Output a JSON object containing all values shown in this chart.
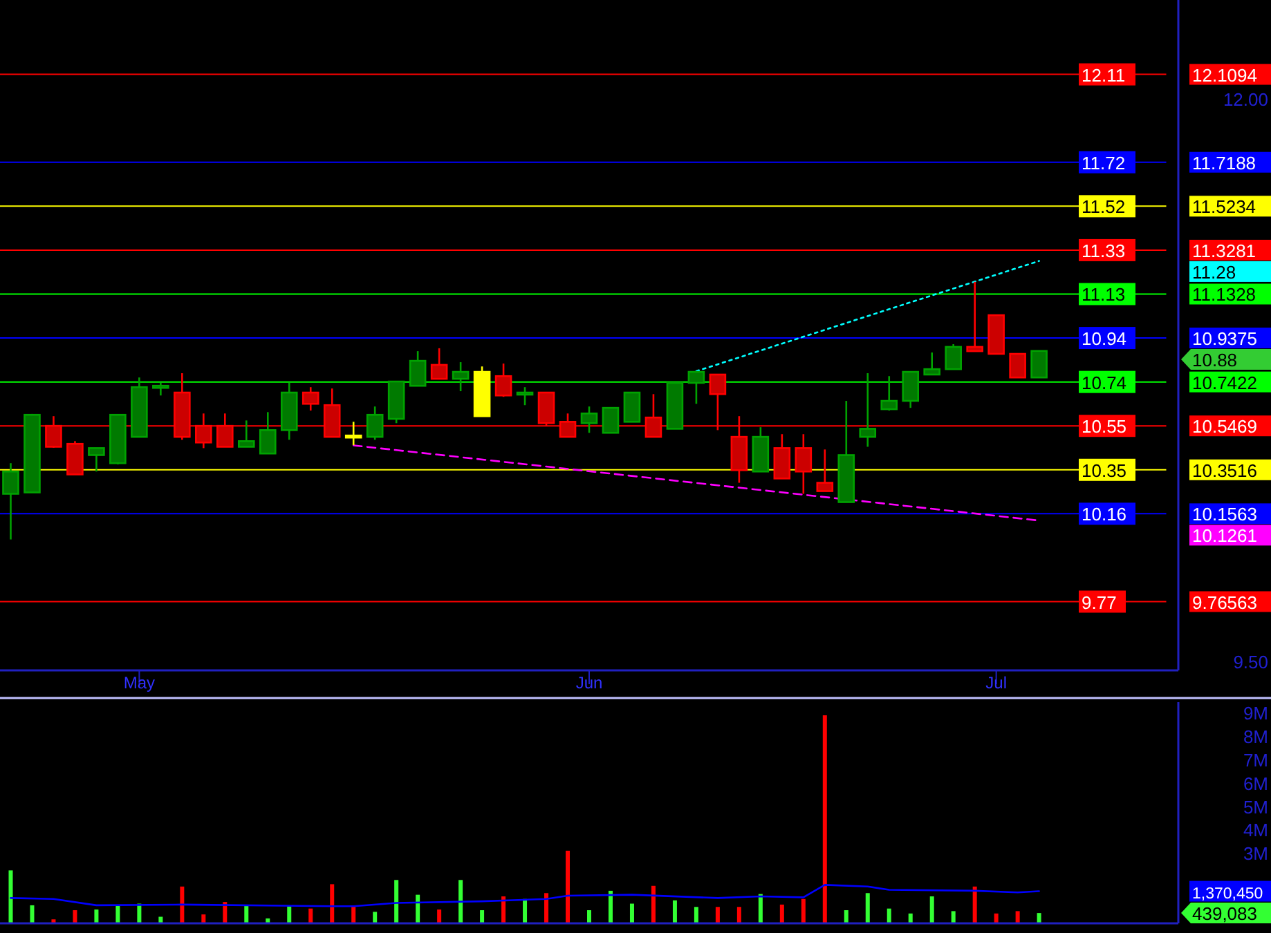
{
  "chart_data": [
    {
      "type": "candlestick",
      "categories": [
        null,
        null,
        null,
        null,
        null,
        null,
        "May",
        null,
        null,
        null,
        null,
        null,
        null,
        null,
        null,
        null,
        null,
        null,
        null,
        null,
        null,
        null,
        null,
        null,
        null,
        null,
        null,
        "Jun",
        null,
        null,
        null,
        null,
        null,
        null,
        null,
        null,
        null,
        null,
        null,
        null,
        null,
        null,
        null,
        null,
        null,
        null,
        "Jul",
        null,
        null,
        null,
        null,
        null,
        null,
        null,
        null
      ],
      "ohlc": [
        [
          10.245,
          10.381,
          10.042,
          10.344
        ],
        [
          10.251,
          10.6,
          10.25,
          10.596
        ],
        [
          10.547,
          10.59,
          10.45,
          10.454
        ],
        [
          10.467,
          10.479,
          10.33,
          10.331
        ],
        [
          10.417,
          10.448,
          10.344,
          10.448
        ],
        [
          10.381,
          10.596,
          10.376,
          10.596
        ],
        [
          10.498,
          10.762,
          10.498,
          10.719
        ],
        [
          10.72,
          10.738,
          10.682,
          10.725
        ],
        [
          10.695,
          10.781,
          10.485,
          10.498
        ],
        [
          10.547,
          10.602,
          10.448,
          10.473
        ],
        [
          10.547,
          10.602,
          10.454,
          10.454
        ],
        [
          10.454,
          10.571,
          10.454,
          10.479
        ],
        [
          10.424,
          10.608,
          10.424,
          10.528
        ],
        [
          10.528,
          10.738,
          10.485,
          10.695
        ],
        [
          10.695,
          10.719,
          10.615,
          10.645
        ],
        [
          10.639,
          10.713,
          10.498,
          10.498
        ],
        [
          10.504,
          10.565,
          10.461,
          10.504
        ],
        [
          10.498,
          10.633,
          10.485,
          10.596
        ],
        [
          10.578,
          10.744,
          10.559,
          10.744
        ],
        [
          10.725,
          10.879,
          10.725,
          10.836
        ],
        [
          10.818,
          10.892,
          10.756,
          10.756
        ],
        [
          10.756,
          10.83,
          10.701,
          10.787
        ],
        [
          10.59,
          10.811,
          10.59,
          10.787
        ],
        [
          10.768,
          10.824,
          10.676,
          10.682
        ],
        [
          10.69,
          10.719,
          10.639,
          10.695
        ],
        [
          10.695,
          10.695,
          10.547,
          10.559
        ],
        [
          10.565,
          10.602,
          10.498,
          10.498
        ],
        [
          10.559,
          10.633,
          10.516,
          10.602
        ],
        [
          10.516,
          10.627,
          10.516,
          10.627
        ],
        [
          10.565,
          10.695,
          10.565,
          10.695
        ],
        [
          10.584,
          10.688,
          10.498,
          10.498
        ],
        [
          10.534,
          10.738,
          10.534,
          10.738
        ],
        [
          10.738,
          10.787,
          10.645,
          10.787
        ],
        [
          10.775,
          10.775,
          10.528,
          10.688
        ],
        [
          10.498,
          10.59,
          10.294,
          10.35
        ],
        [
          10.344,
          10.541,
          10.344,
          10.498
        ],
        [
          10.448,
          10.51,
          10.313,
          10.313
        ],
        [
          10.448,
          10.51,
          10.245,
          10.344
        ],
        [
          10.294,
          10.442,
          10.257,
          10.257
        ],
        [
          10.208,
          10.658,
          10.208,
          10.417
        ],
        [
          10.498,
          10.781,
          10.454,
          10.534
        ],
        [
          10.621,
          10.768,
          10.615,
          10.658
        ],
        [
          10.658,
          10.787,
          10.627,
          10.787
        ],
        [
          10.775,
          10.873,
          10.775,
          10.799
        ],
        [
          10.799,
          10.91,
          10.799,
          10.898
        ],
        [
          10.898,
          11.187,
          10.879,
          10.879
        ],
        [
          11.039,
          11.039,
          10.867,
          10.867
        ],
        [
          10.867,
          10.867,
          10.762,
          10.762
        ],
        [
          10.762,
          10.88,
          10.762,
          10.88
        ],
        null,
        null,
        null,
        null,
        null,
        null
      ],
      "colors": [
        "#007a00",
        "#007a00",
        "#cc0000",
        "#cc0000",
        "#007a00",
        "#007a00",
        "#007a00",
        "#007a00",
        "#cc0000",
        "#cc0000",
        "#cc0000",
        "#007a00",
        "#007a00",
        "#007a00",
        "#cc0000",
        "#cc0000",
        "#ffff00",
        "#007a00",
        "#007a00",
        "#007a00",
        "#cc0000",
        "#007a00",
        "#ffff00",
        "#cc0000",
        "#007a00",
        "#cc0000",
        "#cc0000",
        "#007a00",
        "#007a00",
        "#007a00",
        "#cc0000",
        "#007a00",
        "#007a00",
        "#cc0000",
        "#cc0000",
        "#007a00",
        "#cc0000",
        "#cc0000",
        "#cc0000",
        "#007a00",
        "#007a00",
        "#007a00",
        "#007a00",
        "#007a00",
        "#007a00",
        "#cc0000",
        "#cc0000",
        "#cc0000",
        "#007a00",
        null,
        null,
        null,
        null,
        null,
        null
      ],
      "series": [
        {
          "type": "line",
          "values": [
            null,
            null,
            null,
            null,
            null,
            null,
            null,
            null,
            null,
            null,
            null,
            null,
            null,
            null,
            null,
            null,
            10.46,
            null,
            null,
            null,
            null,
            null,
            null,
            null,
            null,
            null,
            null,
            null,
            null,
            null,
            null,
            null,
            null,
            null,
            null,
            null,
            null,
            null,
            null,
            null,
            null,
            null,
            null,
            null,
            null,
            null,
            null,
            null,
            10.1261,
            null,
            null,
            null,
            null,
            null,
            null
          ],
          "color": "#ff00ff",
          "line_style": "dashed"
        },
        {
          "type": "line",
          "values": [
            null,
            null,
            null,
            null,
            null,
            null,
            null,
            null,
            null,
            null,
            null,
            null,
            null,
            null,
            null,
            null,
            null,
            null,
            null,
            null,
            null,
            null,
            null,
            null,
            null,
            null,
            null,
            null,
            null,
            null,
            null,
            null,
            10.79,
            null,
            null,
            null,
            null,
            null,
            null,
            null,
            null,
            null,
            null,
            null,
            null,
            null,
            null,
            null,
            11.28,
            null,
            null,
            null,
            null,
            null,
            null
          ],
          "color": "#00ffff",
          "line_style": "dotted"
        }
      ],
      "ref_lines": [
        {
          "axis": "y",
          "value": 12.1094,
          "label": "12.11",
          "color": "#ff0000"
        },
        {
          "axis": "y",
          "value": 11.7188,
          "label": "11.72",
          "color": "#0000ff"
        },
        {
          "axis": "y",
          "value": 11.5234,
          "label": "11.52",
          "color": "#ffff00"
        },
        {
          "axis": "y",
          "value": 11.3281,
          "label": "11.33",
          "color": "#ff0000"
        },
        {
          "axis": "y",
          "value": 11.1328,
          "label": "11.13",
          "color": "#00ff00"
        },
        {
          "axis": "y",
          "value": 10.9375,
          "label": "10.94",
          "color": "#0000ff"
        },
        {
          "axis": "y",
          "value": 10.7422,
          "label": "10.74",
          "color": "#00ff00"
        },
        {
          "axis": "y",
          "value": 10.5469,
          "label": "10.55",
          "color": "#ff0000"
        },
        {
          "axis": "y",
          "value": 10.3516,
          "label": "10.35",
          "color": "#ffff00"
        },
        {
          "axis": "y",
          "value": 10.1563,
          "label": "10.16",
          "color": "#0000ff"
        },
        {
          "axis": "y",
          "value": 9.76563,
          "label": "9.77",
          "color": "#ff0000"
        }
      ],
      "annotations": [
        "12.1094",
        "11.7188",
        "11.5234",
        "11.3281",
        "11.28",
        "11.1328",
        "10.9375",
        "10.88",
        "10.7422",
        "10.5469",
        "10.3516",
        "10.1563",
        "10.1261",
        "9.76563"
      ],
      "ylim": [
        9.46,
        12.44
      ],
      "yticks": [
        {
          "value": 9.5,
          "label": "9.50"
        },
        {
          "value": 12,
          "label": "12.00"
        }
      ],
      "grid": false
    },
    {
      "type": "bar",
      "categories": [
        null,
        null,
        null,
        null,
        null,
        null,
        null,
        null,
        null,
        null,
        null,
        null,
        null,
        null,
        null,
        null,
        null,
        null,
        null,
        null,
        null,
        null,
        null,
        null,
        null,
        null,
        null,
        null,
        null,
        null,
        null,
        null,
        null,
        null,
        null,
        null,
        null,
        null,
        null,
        null,
        null,
        null,
        null,
        null,
        null,
        null,
        null,
        null,
        null,
        null,
        null,
        null,
        null,
        null,
        null
      ],
      "series": [
        {
          "type": "bar",
          "values": [
            2260000,
            770000,
            170000,
            560000,
            590000,
            770000,
            840000,
            280000,
            1570000,
            380000,
            910000,
            770000,
            210000,
            730000,
            630000,
            1670000,
            730000,
            490000,
            1850000,
            1220000,
            590000,
            1850000,
            560000,
            1150000,
            1040000,
            1290000,
            3100000,
            560000,
            1390000,
            840000,
            1600000,
            980000,
            700000,
            700000,
            700000,
            1250000,
            800000,
            1040000,
            8880000,
            560000,
            1290000,
            630000,
            420000,
            1150000,
            520000,
            1570000,
            420000,
            520000,
            439083,
            null,
            null,
            null,
            null,
            null,
            null
          ],
          "colors": [
            "#33ff33",
            "#33ff33",
            "#ff0000",
            "#ff0000",
            "#33ff33",
            "#33ff33",
            "#33ff33",
            "#33ff33",
            "#ff0000",
            "#ff0000",
            "#ff0000",
            "#33ff33",
            "#33ff33",
            "#33ff33",
            "#ff0000",
            "#ff0000",
            "#ff0000",
            "#33ff33",
            "#33ff33",
            "#33ff33",
            "#ff0000",
            "#33ff33",
            "#33ff33",
            "#ff0000",
            "#33ff33",
            "#ff0000",
            "#ff0000",
            "#33ff33",
            "#33ff33",
            "#33ff33",
            "#ff0000",
            "#33ff33",
            "#33ff33",
            "#ff0000",
            "#ff0000",
            "#33ff33",
            "#ff0000",
            "#ff0000",
            "#ff0000",
            "#33ff33",
            "#33ff33",
            "#33ff33",
            "#33ff33",
            "#33ff33",
            "#33ff33",
            "#ff0000",
            "#ff0000",
            "#ff0000",
            "#33ff33",
            null,
            null,
            null,
            null,
            null,
            null
          ]
        },
        {
          "type": "line",
          "values": [
            1080000,
            null,
            1040000,
            null,
            770000,
            null,
            null,
            null,
            800000,
            null,
            null,
            null,
            null,
            null,
            null,
            730000,
            730000,
            null,
            870000,
            null,
            null,
            null,
            940000,
            null,
            null,
            1040000,
            1180000,
            null,
            null,
            1220000,
            null,
            null,
            null,
            1080000,
            null,
            1150000,
            null,
            1110000,
            1640000,
            null,
            1570000,
            1430000,
            null,
            null,
            null,
            1390000,
            null,
            1320000,
            1370450,
            null,
            null,
            null,
            null,
            null,
            null
          ],
          "color": "#0000ff"
        }
      ],
      "annotations": [
        "1,370,450",
        "439,083"
      ],
      "ylim": [
        0,
        9440000
      ],
      "yticks": [
        {
          "value": 3000000,
          "label": "3M"
        },
        {
          "value": 4000000,
          "label": "4M"
        },
        {
          "value": 5000000,
          "label": "5M"
        },
        {
          "value": 6000000,
          "label": "6M"
        },
        {
          "value": 7000000,
          "label": "7M"
        },
        {
          "value": 8000000,
          "label": "8M"
        },
        {
          "value": 9000000,
          "label": "9M"
        }
      ],
      "tick_labels": "y",
      "grid": false
    }
  ]
}
